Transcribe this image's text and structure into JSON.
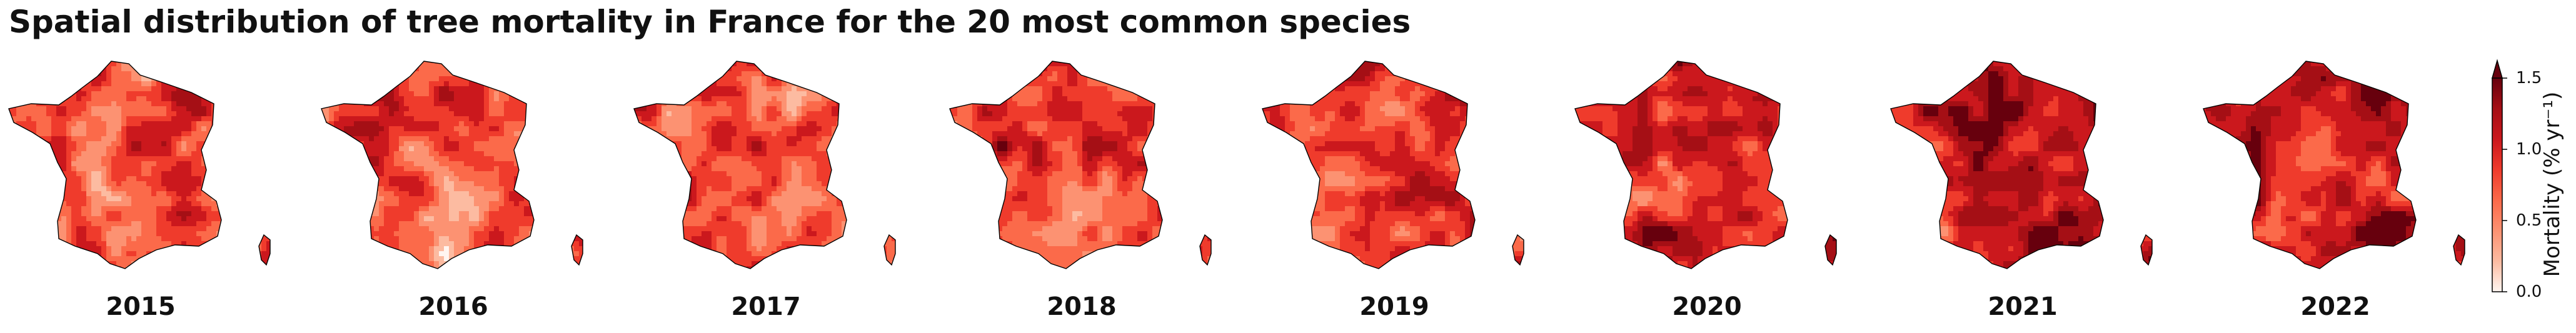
{
  "title": "Spatial distribution of tree mortality in France for the 20 most common species",
  "colors": {
    "scale": [
      "#fff5f0",
      "#fcbba1",
      "#fc9272",
      "#fb6a4a",
      "#ef3b2c",
      "#cb181d",
      "#a50f15",
      "#67000d"
    ],
    "outline": "#000000"
  },
  "colorbar": {
    "label": "Mortality (% yr⁻¹)",
    "ticks": [
      "0.0",
      "0.5",
      "1.0",
      "1.5"
    ],
    "min": 0,
    "max": 1.5,
    "extend": "max"
  },
  "panels": [
    {
      "year": "2015"
    },
    {
      "year": "2016"
    },
    {
      "year": "2017"
    },
    {
      "year": "2018"
    },
    {
      "year": "2019"
    },
    {
      "year": "2020"
    },
    {
      "year": "2021"
    },
    {
      "year": "2022"
    }
  ]
}
